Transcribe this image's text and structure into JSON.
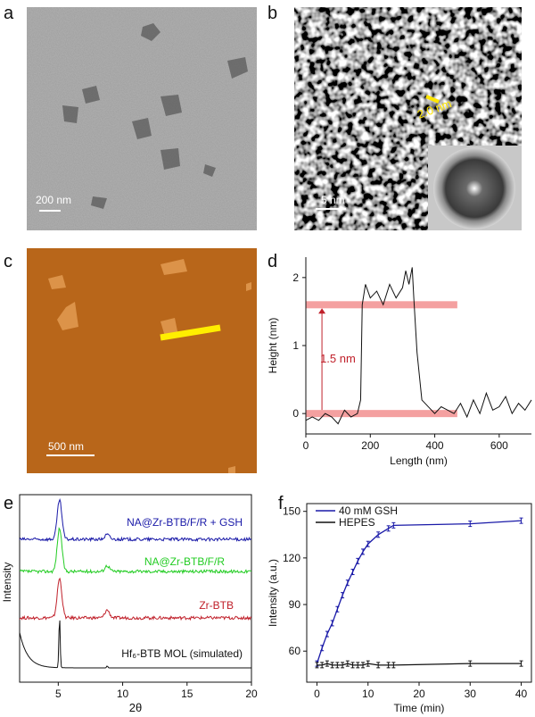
{
  "panels": {
    "a": {
      "letter": "a",
      "scale_bar": "200 nm"
    },
    "b": {
      "letter": "b",
      "scale_bar": "5 nm",
      "measure_label": "2.0 nm"
    },
    "c": {
      "letter": "c",
      "scale_bar": "500 nm"
    },
    "d": {
      "letter": "d"
    },
    "e": {
      "letter": "e"
    },
    "f": {
      "letter": "f"
    }
  },
  "chart_data": [
    {
      "panel": "d",
      "type": "line",
      "xlabel": "Length (nm)",
      "ylabel": "Height (nm)",
      "xlim": [
        0,
        700
      ],
      "ylim": [
        -0.3,
        2.3
      ],
      "xticks": [
        0,
        200,
        400,
        600
      ],
      "yticks": [
        0,
        1,
        2
      ],
      "annotation": "1.5 nm",
      "band_levels": [
        0,
        1.6
      ],
      "band_x_range": [
        0,
        470
      ],
      "colors": {
        "line": "#111111",
        "band": "#f08080",
        "annotation": "#c0202a"
      },
      "x": [
        0,
        20,
        40,
        60,
        80,
        100,
        120,
        140,
        160,
        170,
        175,
        185,
        200,
        220,
        240,
        260,
        280,
        300,
        310,
        320,
        330,
        335,
        345,
        360,
        380,
        400,
        420,
        440,
        460,
        480,
        500,
        520,
        540,
        560,
        580,
        600,
        620,
        640,
        660,
        680,
        700
      ],
      "y": [
        -0.1,
        -0.05,
        -0.1,
        0.0,
        -0.05,
        -0.15,
        0.05,
        -0.05,
        0.0,
        0.2,
        1.6,
        1.9,
        1.7,
        1.8,
        1.6,
        1.9,
        1.7,
        1.85,
        2.1,
        1.9,
        2.15,
        1.7,
        0.9,
        0.2,
        0.1,
        0.0,
        0.1,
        0.05,
        0.0,
        0.15,
        -0.05,
        0.2,
        0.0,
        0.3,
        0.05,
        0.1,
        0.25,
        0.0,
        0.15,
        0.05,
        0.2
      ]
    },
    {
      "panel": "e",
      "type": "line",
      "xlabel": "2θ",
      "ylabel": "Intensity",
      "xlim": [
        2,
        20
      ],
      "xticks": [
        5,
        10,
        15,
        20
      ],
      "series": [
        {
          "name": "NA@Zr-BTB/F/R + GSH",
          "color": "#1a1aa8",
          "offset": 3,
          "peaks": [
            [
              5.1,
              1.0
            ],
            [
              8.8,
              0.12
            ]
          ]
        },
        {
          "name": "NA@Zr-BTB/F/R",
          "color": "#22cc22",
          "offset": 2,
          "peaks": [
            [
              5.1,
              1.1
            ],
            [
              8.8,
              0.15
            ]
          ]
        },
        {
          "name": "Zr-BTB",
          "color": "#c0202a",
          "offset": 1,
          "peaks": [
            [
              5.1,
              1.0
            ],
            [
              8.8,
              0.2
            ]
          ]
        },
        {
          "name": "Hf₆-BTB MOL (simulated)",
          "color": "#111111",
          "offset": 0,
          "peaks": [
            [
              5.1,
              1.3
            ],
            [
              8.8,
              0.05
            ]
          ]
        }
      ]
    },
    {
      "panel": "f",
      "type": "line",
      "xlabel": "Time (min)",
      "ylabel": "Intensity (a.u.)",
      "xlim": [
        -2,
        42
      ],
      "ylim": [
        40,
        155
      ],
      "xticks": [
        0,
        10,
        20,
        30,
        40
      ],
      "yticks": [
        60,
        90,
        120,
        150
      ],
      "legend": "top-left",
      "series": [
        {
          "name": "40 mM GSH",
          "color": "#1a1aa8",
          "x": [
            0,
            1,
            2,
            3,
            4,
            5,
            6,
            7,
            8,
            9,
            10,
            12,
            14,
            15,
            30,
            40
          ],
          "y": [
            52,
            62,
            71,
            78,
            87,
            96,
            104,
            111,
            118,
            124,
            129,
            135,
            139,
            141,
            142,
            144
          ]
        },
        {
          "name": "HEPES",
          "color": "#111111",
          "x": [
            0,
            1,
            2,
            3,
            4,
            5,
            6,
            7,
            8,
            9,
            10,
            12,
            14,
            15,
            30,
            40
          ],
          "y": [
            51,
            51,
            52,
            51,
            51,
            51,
            52,
            51,
            51,
            51,
            52,
            51,
            51,
            51,
            52,
            52
          ]
        }
      ]
    }
  ]
}
